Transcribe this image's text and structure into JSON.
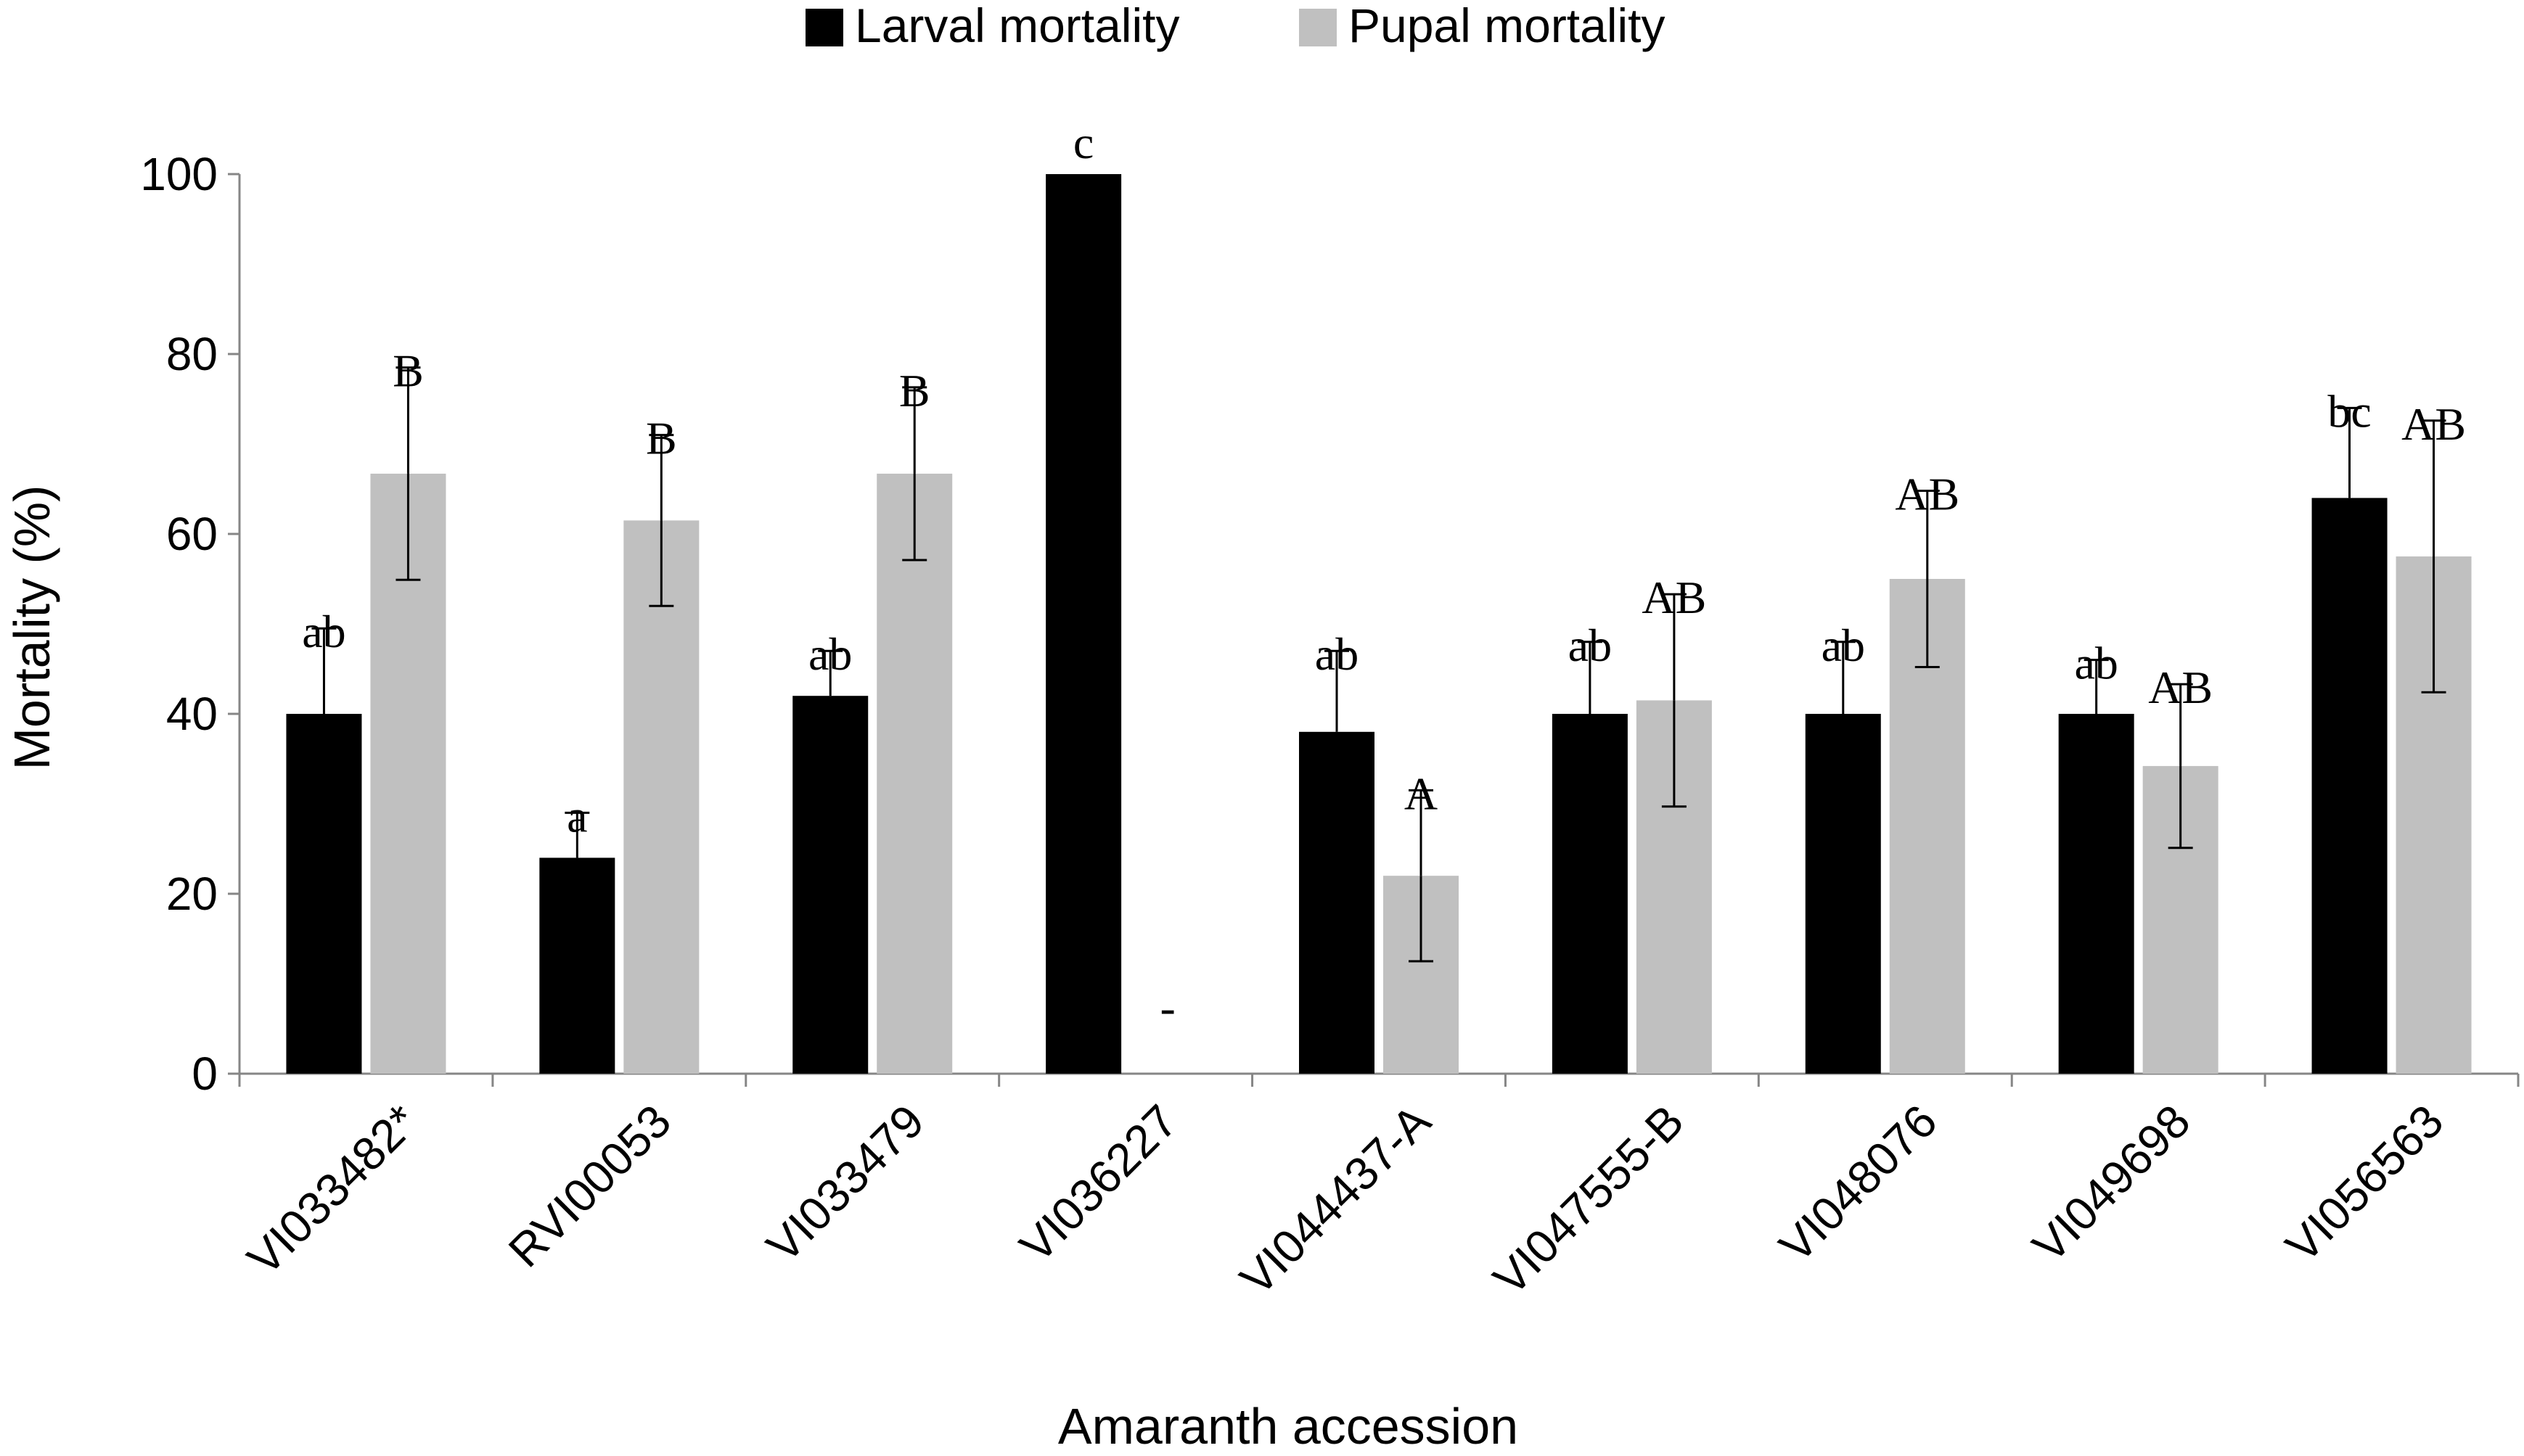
{
  "chart_data": {
    "type": "bar",
    "title": "",
    "xlabel": "Amaranth accession",
    "ylabel": "Mortality (%)",
    "ylim": [
      0,
      100
    ],
    "yticks": [
      0,
      20,
      40,
      60,
      80,
      100
    ],
    "yticklabels": [
      "0",
      "20",
      "40",
      "60",
      "80",
      "100"
    ],
    "grid": false,
    "legend_position": "top-center",
    "categories": [
      "VI033482*",
      "RVI00053",
      "VI033479",
      "VI036227",
      "VI044437-A",
      "VI047555-B",
      "VI048076",
      "VI049698",
      "VI056563"
    ],
    "series": [
      {
        "name": "Larval mortality",
        "color": "#000000",
        "values": [
          40,
          24,
          42,
          100,
          38,
          40,
          40,
          40,
          64
        ],
        "errors": [
          9.5,
          5,
          5,
          0,
          9,
          8,
          8,
          6,
          10
        ],
        "letters": [
          "ab",
          "a",
          "ab",
          "c",
          "ab",
          "ab",
          "ab",
          "ab",
          "bc"
        ]
      },
      {
        "name": "Pupal mortality",
        "color": "#c0c0c0",
        "values": [
          66.7,
          61.5,
          66.7,
          null,
          22,
          41.5,
          55,
          34.2,
          57.5
        ],
        "errors": [
          11.8,
          9.5,
          9.6,
          null,
          9.5,
          11.8,
          9.8,
          9.1,
          15.1
        ],
        "letters": [
          "B",
          "B",
          "B",
          "-",
          "A",
          "AB",
          "AB",
          "AB",
          "AB"
        ]
      }
    ]
  }
}
